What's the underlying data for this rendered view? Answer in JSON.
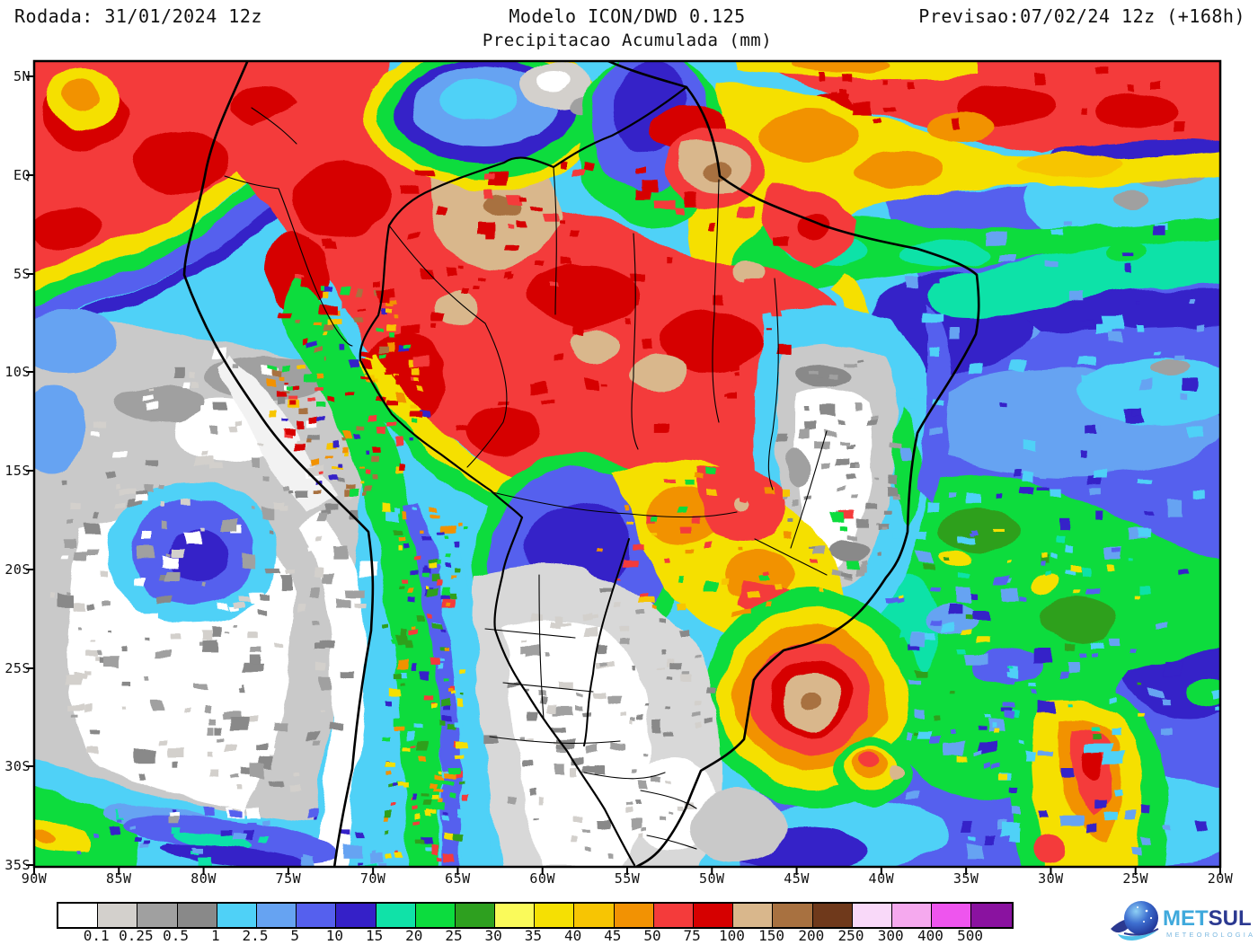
{
  "header": {
    "run_label": "Rodada: 31/01/2024 12z",
    "model_label": "Modelo ICON/DWD 0.125",
    "product_label": "Precipitacao Acumulada (mm)",
    "forecast_label": "Previsao:07/02/24 12z (+168h)"
  },
  "axes": {
    "lat_labels": [
      "5N",
      "EQ",
      "5S",
      "10S",
      "15S",
      "20S",
      "25S",
      "30S",
      "35S"
    ],
    "lon_labels": [
      "90W",
      "85W",
      "80W",
      "75W",
      "70W",
      "65W",
      "60W",
      "55W",
      "50W",
      "45W",
      "40W",
      "35W",
      "30W",
      "25W",
      "20W"
    ]
  },
  "colorbar": {
    "unit": "mm",
    "labels": [
      "0.1",
      "0.25",
      "0.5",
      "1",
      "2.5",
      "5",
      "10",
      "15",
      "20",
      "25",
      "30",
      "35",
      "40",
      "45",
      "50",
      "75",
      "100",
      "150",
      "200",
      "250",
      "300",
      "400",
      "500"
    ],
    "colors": [
      "#FFFFFF",
      "#D3D0CC",
      "#A0A0A0",
      "#898989",
      "#4FD1F7",
      "#66A3F2",
      "#5560EE",
      "#3520C8",
      "#10E2A8",
      "#0CDC3E",
      "#2EA01F",
      "#FAFA5A",
      "#F5E003",
      "#F7C503",
      "#F29203",
      "#F43B3B",
      "#D60000",
      "#D9B78C",
      "#A87140",
      "#6F391B",
      "#F9D9F9",
      "#F5A9EE",
      "#EE55EE",
      "#8A12A0"
    ]
  },
  "logo": {
    "met": "MET",
    "sul": "SUL",
    "subtitle": "METEOROLOGIA"
  }
}
